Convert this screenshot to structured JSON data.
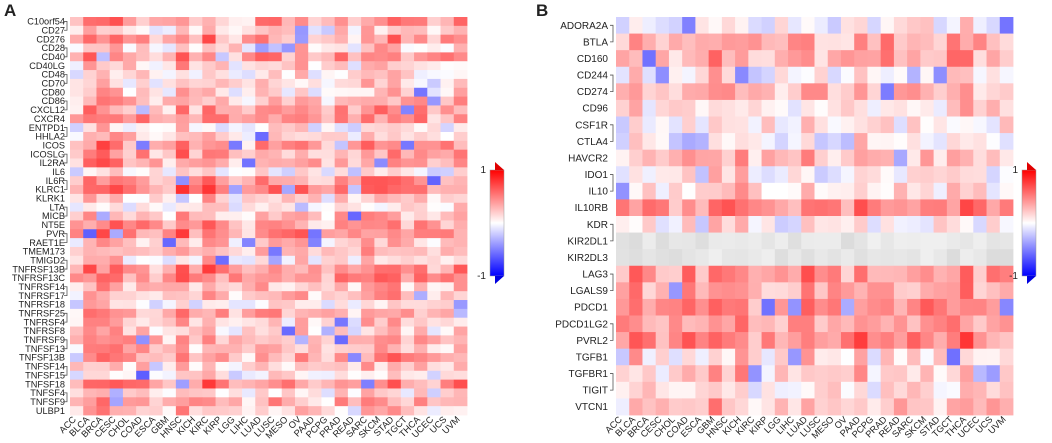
{
  "chart_data": [
    {
      "panel": "A",
      "type": "heatmap",
      "title": "",
      "xlabel": "",
      "ylabel": "",
      "colorbar": {
        "min": -1,
        "max": 1,
        "min_label": "-1",
        "max_label": "1",
        "colors": [
          "#0000ff",
          "#ffffff",
          "#ff0000"
        ]
      },
      "rows": [
        "C10orf54",
        "CD27",
        "CD276",
        "CD28",
        "CD40",
        "CD40LG",
        "CD48",
        "CD70",
        "CD80",
        "CD86",
        "CXCL12",
        "CXCR4",
        "ENTPD1",
        "HHLA2",
        "ICOS",
        "ICOSLG",
        "IL2RA",
        "IL6",
        "IL6R",
        "KLRC1",
        "KLRK1",
        "LTA",
        "MICB",
        "NT5E",
        "PVR",
        "RAET1E",
        "TMEM173",
        "TMIGD2",
        "TNFRSF13B",
        "TNFRSF13C",
        "TNFRSF14",
        "TNFRSF17",
        "TNFRSF18",
        "TNFRSF25",
        "TNFRSF4",
        "TNFRSF8",
        "TNFRSF9",
        "TNFSF13",
        "TNFSF13B",
        "TNFSF14",
        "TNFSF15",
        "TNFSF18",
        "TNFSF4",
        "TNFSF9",
        "ULBP1"
      ],
      "columns": [
        "ACC",
        "BLCA",
        "BRCA",
        "CESC",
        "CHOL",
        "COAD",
        "ESCA",
        "GBM",
        "HNSC",
        "KICH",
        "KIRC",
        "KIRP",
        "LGG",
        "LIHC",
        "LUAD",
        "LUSC",
        "MESO",
        "OV",
        "PAAD",
        "PCPG",
        "PRAD",
        "READ",
        "SARC",
        "SKCM",
        "STAD",
        "TGCT",
        "THCA",
        "UCEC",
        "UCS",
        "UVM"
      ]
    },
    {
      "panel": "B",
      "type": "heatmap",
      "title": "",
      "xlabel": "",
      "ylabel": "",
      "colorbar": {
        "min": -1,
        "max": 1,
        "min_label": "-1",
        "max_label": "1",
        "colors": [
          "#0000ff",
          "#ffffff",
          "#ff0000"
        ]
      },
      "rows": [
        "ADORA2A",
        "BTLA",
        "CD160",
        "CD244",
        "CD274",
        "CD96",
        "CSF1R",
        "CTLA4",
        "HAVCR2",
        "IDO1",
        "IL10",
        "IL10RB",
        "KDR",
        "KIR2DL1",
        "KIR2DL3",
        "LAG3",
        "LGALS9",
        "PDCD1",
        "PDCD1LG2",
        "PVRL2",
        "TGFB1",
        "TGFBR1",
        "TIGIT",
        "VTCN1"
      ],
      "columns": [
        "ACC",
        "BLCA",
        "BRCA",
        "CESC",
        "CHOL",
        "COAD",
        "ESCA",
        "GBM",
        "HNSC",
        "KICH",
        "KIRC",
        "KIRP",
        "LGG",
        "LIHC",
        "LUAD",
        "LUSC",
        "MESO",
        "OV",
        "PAAD",
        "PCPG",
        "PRAD",
        "READ",
        "SARC",
        "SKCM",
        "STAD",
        "TGCT",
        "THCA",
        "UCEC",
        "UCS",
        "UVM"
      ]
    }
  ]
}
